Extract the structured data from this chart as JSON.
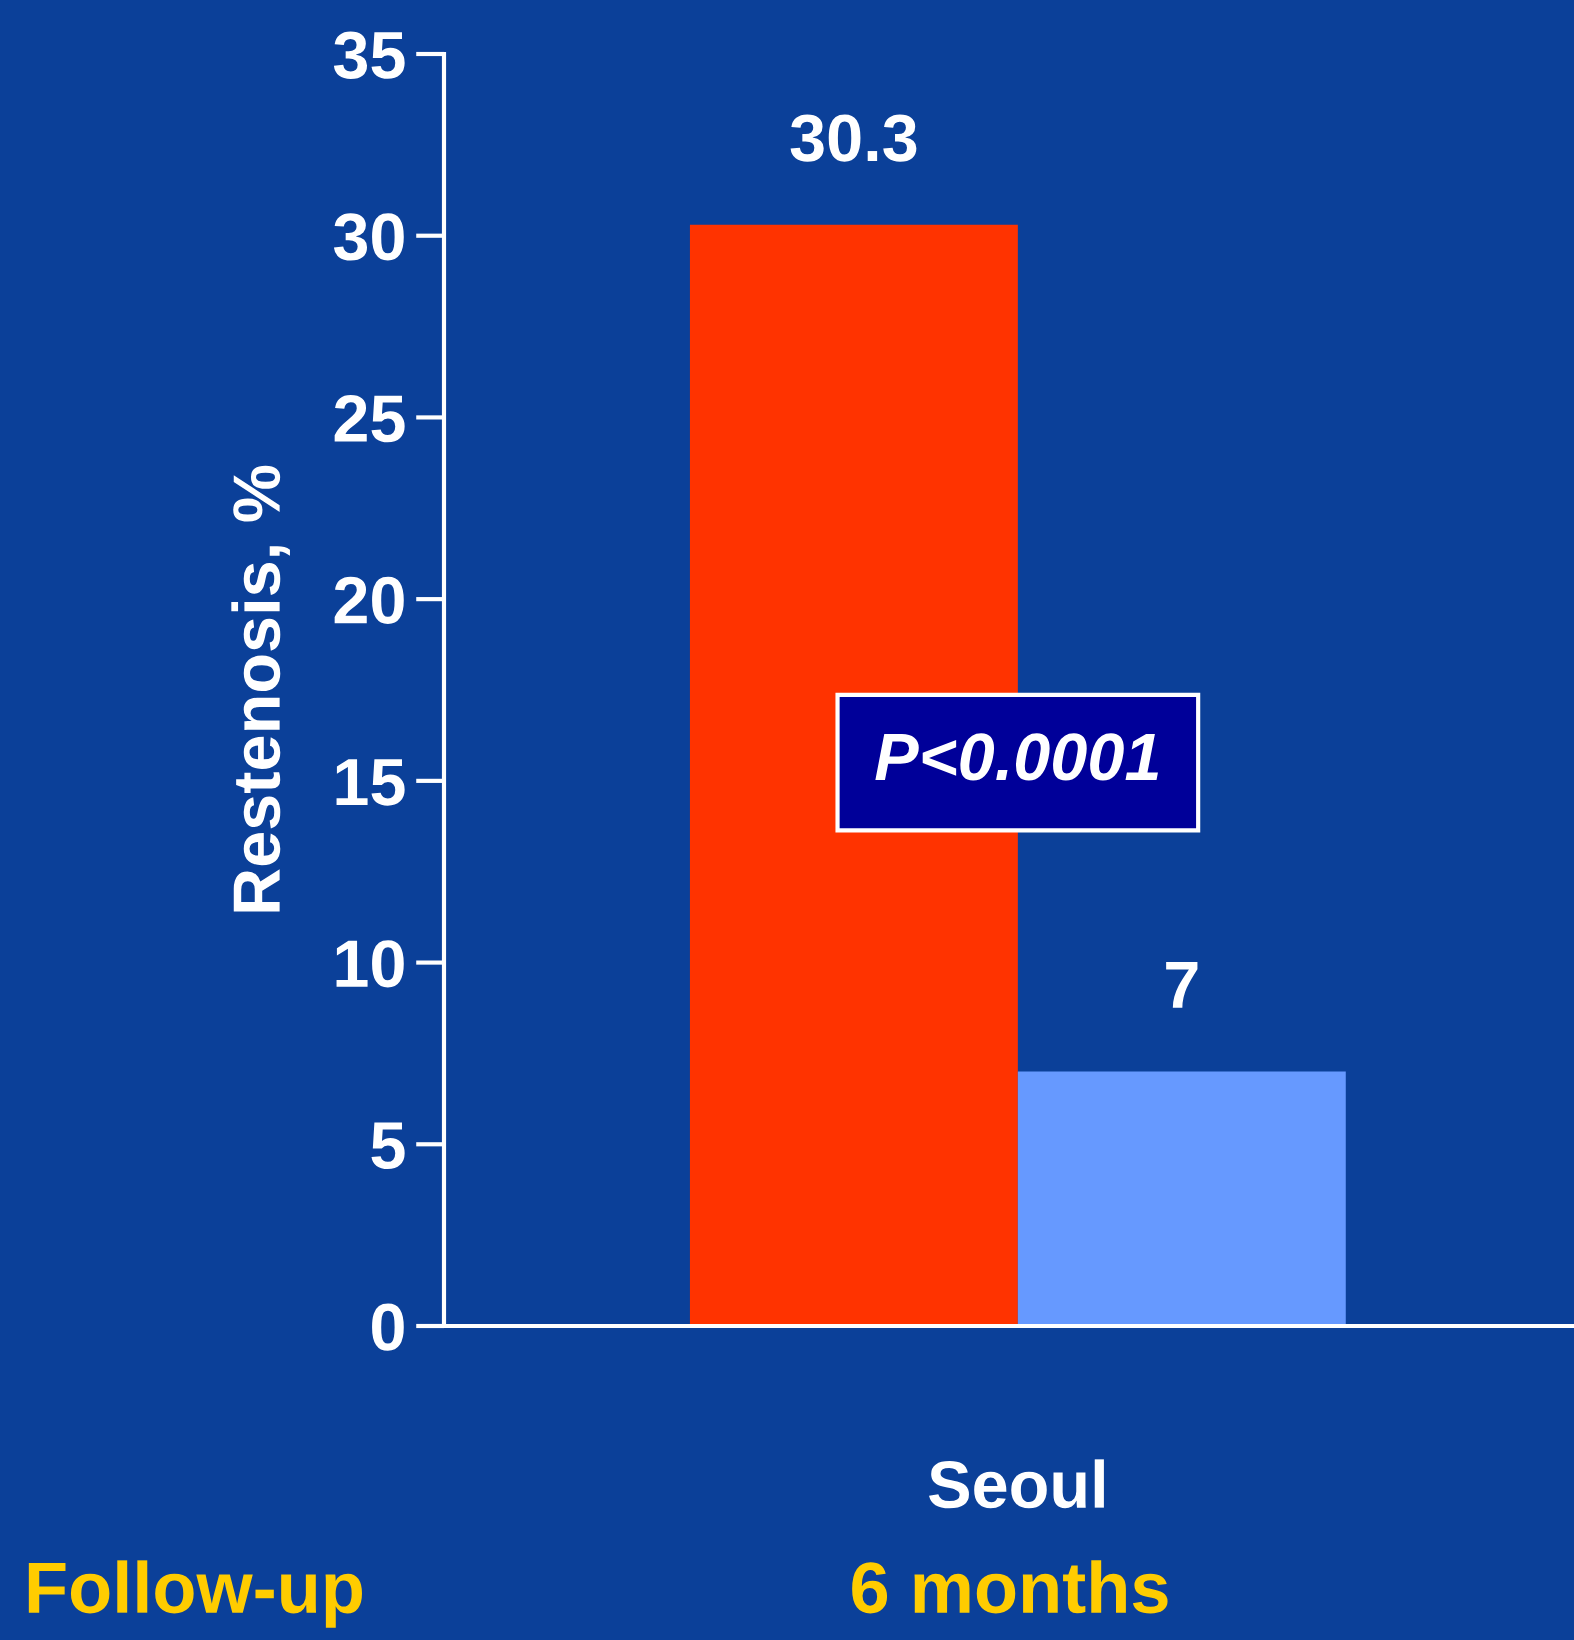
{
  "chart_data": {
    "type": "bar",
    "ylabel": "Restenosis, %",
    "categories": [
      "Seoul"
    ],
    "series": [
      {
        "color": "#ff3300",
        "values": [
          30.3
        ]
      },
      {
        "color": "#6699ff",
        "values": [
          7
        ]
      }
    ],
    "ylim": [
      0,
      35
    ],
    "yticks": [
      0,
      5,
      10,
      15,
      20,
      25,
      30,
      35
    ],
    "data_labels": true,
    "grid": false,
    "legend": false,
    "annotations": [
      "P<0.0001",
      "Follow-up",
      "6 months"
    ]
  }
}
